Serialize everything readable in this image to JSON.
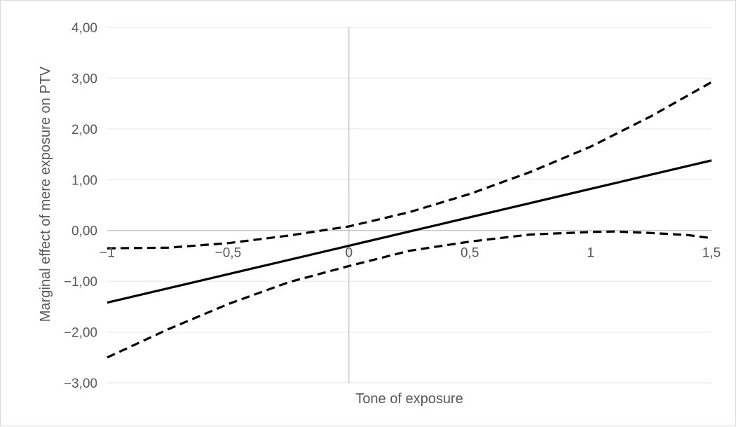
{
  "chart_data": {
    "type": "line",
    "title": "",
    "xlabel": "Tone of exposure",
    "ylabel": "Marginal effect of mere exposure on PTV",
    "xlim": [
      -1,
      1.5
    ],
    "ylim": [
      -3,
      4
    ],
    "x_ticks": [
      "-1",
      "-0,5",
      "0",
      "0,5",
      "1",
      "1,5"
    ],
    "y_ticks": [
      "4,00",
      "3,00",
      "2,00",
      "1,00",
      "0,00",
      "-1,00",
      "-2,00",
      "-3,00"
    ],
    "grid": true,
    "legend": "none",
    "colors": {
      "lines": "#000000",
      "grid": "#e3e3e3",
      "axis": "#bfbfbf",
      "text": "#595959"
    },
    "series": [
      {
        "style": "solid",
        "x": [
          -1,
          1.5
        ],
        "y": [
          -1.42,
          1.38
        ]
      },
      {
        "style": "dashed",
        "x": [
          -1,
          -0.75,
          -0.5,
          -0.25,
          0,
          0.25,
          0.5,
          0.75,
          1,
          1.25,
          1.5
        ],
        "y": [
          -0.35,
          -0.34,
          -0.25,
          -0.1,
          0.08,
          0.36,
          0.72,
          1.15,
          1.65,
          2.25,
          2.92
        ]
      },
      {
        "style": "dashed",
        "x": [
          -1,
          -0.75,
          -0.5,
          -0.25,
          0,
          0.25,
          0.5,
          0.75,
          1,
          1.1,
          1.25,
          1.4,
          1.5
        ],
        "y": [
          -2.5,
          -1.95,
          -1.45,
          -1.02,
          -0.7,
          -0.4,
          -0.22,
          -0.08,
          -0.03,
          -0.02,
          -0.05,
          -0.09,
          -0.15
        ]
      }
    ]
  }
}
